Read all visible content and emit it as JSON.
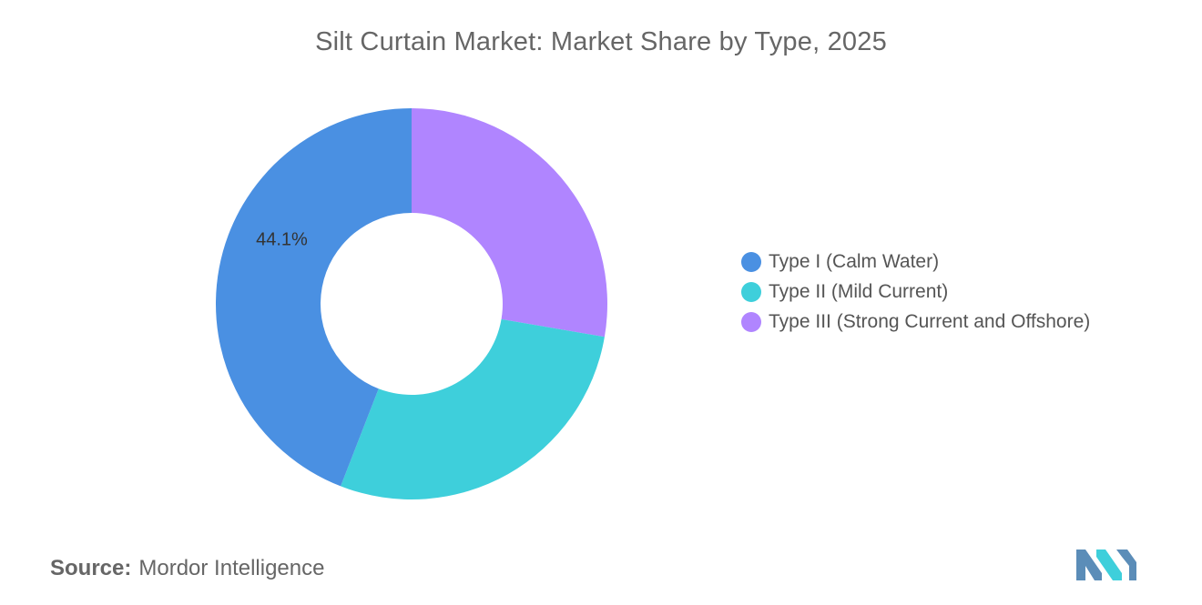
{
  "chart_data": {
    "type": "pie",
    "variant": "donut",
    "title": "Silt Curtain Market: Market Share by Type, 2025",
    "categories": [
      "Type I (Calm Water)",
      "Type II (Mild Current)",
      "Type III (Strong Current and Offshore)"
    ],
    "values": [
      44.1,
      28.2,
      27.7
    ],
    "data_labels": [
      "44.1%",
      "",
      ""
    ],
    "colors": [
      "#4A90E2",
      "#3ECFDB",
      "#B085FF"
    ],
    "legend_placement": "right"
  },
  "source": {
    "label": "Source:",
    "text": "Mordor Intelligence"
  },
  "logo": {
    "icon": "mordor-intelligence-logo",
    "colors": [
      "#5B8DB8",
      "#3ECFDB"
    ]
  }
}
